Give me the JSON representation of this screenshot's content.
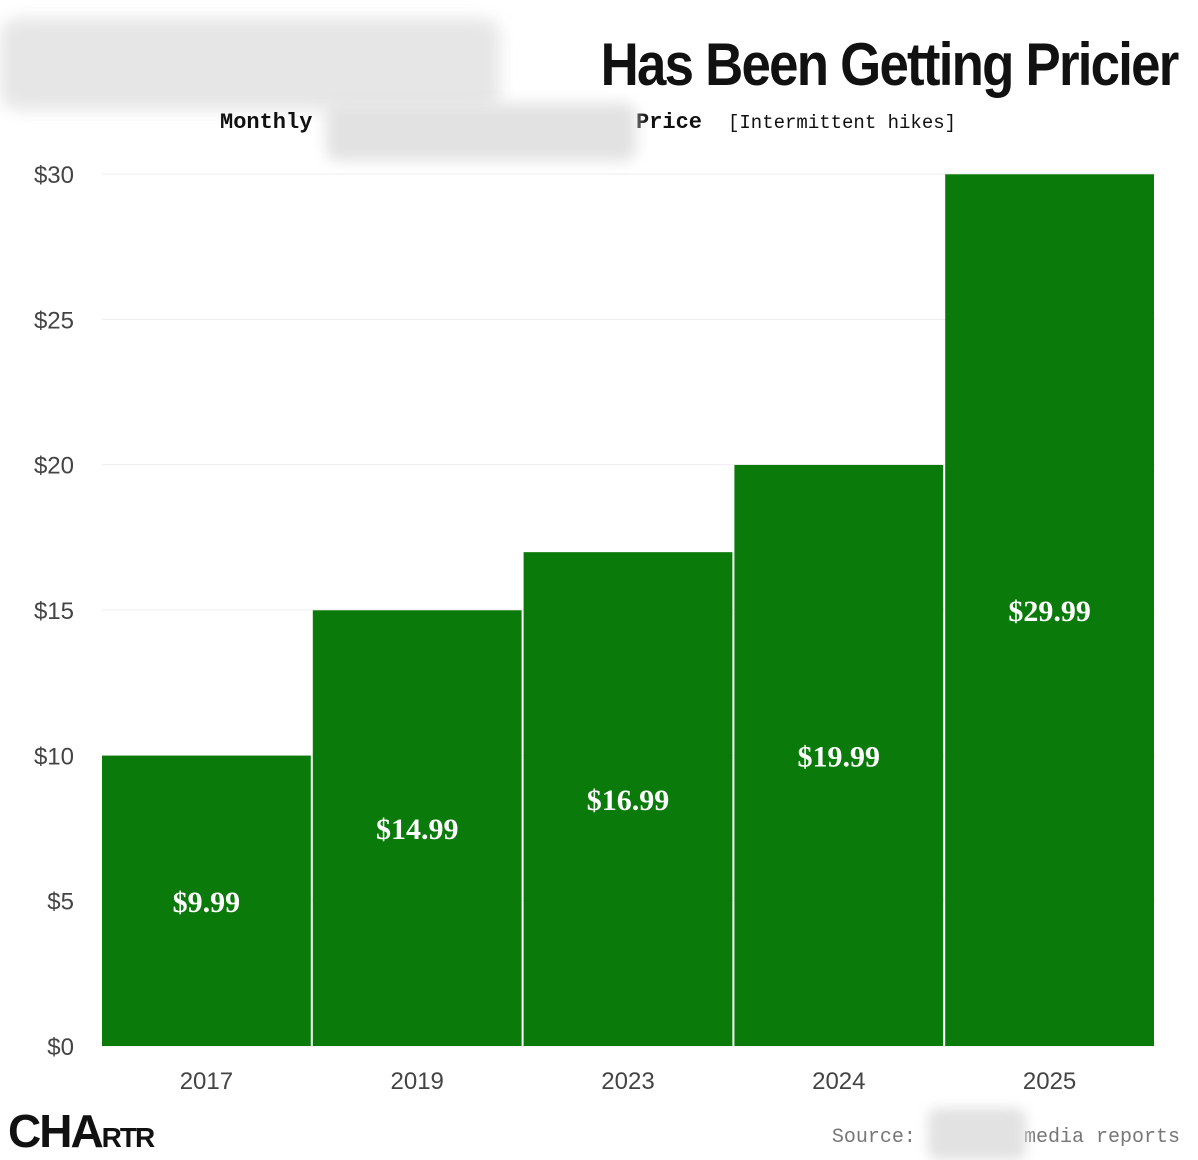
{
  "header": {
    "title": "Has Been Getting Pricier",
    "subtitle_a": "Monthly",
    "subtitle_b": "Price",
    "subtitle_c": "[Intermittent hikes]"
  },
  "brand": {
    "logo_big": "CHA",
    "logo_small": "RTR"
  },
  "footer": {
    "source_label": "Source:",
    "source_rest": "media reports"
  },
  "colors": {
    "bar": "#0a7a0a",
    "grid": "#eeeeee",
    "axis_text": "#444444"
  },
  "chart_data": {
    "type": "bar",
    "categories": [
      "2017",
      "2019",
      "2023",
      "2024",
      "2025"
    ],
    "values": [
      9.99,
      14.99,
      16.99,
      19.99,
      29.99
    ],
    "data_labels": [
      "$9.99",
      "$14.99",
      "$16.99",
      "$19.99",
      "$29.99"
    ],
    "ylim": [
      0,
      30
    ],
    "yticks": [
      0,
      5,
      10,
      15,
      20,
      25,
      30
    ],
    "ytick_labels": [
      "$0",
      "$5",
      "$10",
      "$15",
      "$20",
      "$25",
      "$30"
    ],
    "title": "Has Been Getting Pricier",
    "xlabel": "",
    "ylabel": "",
    "grid": true,
    "legend": "none"
  }
}
